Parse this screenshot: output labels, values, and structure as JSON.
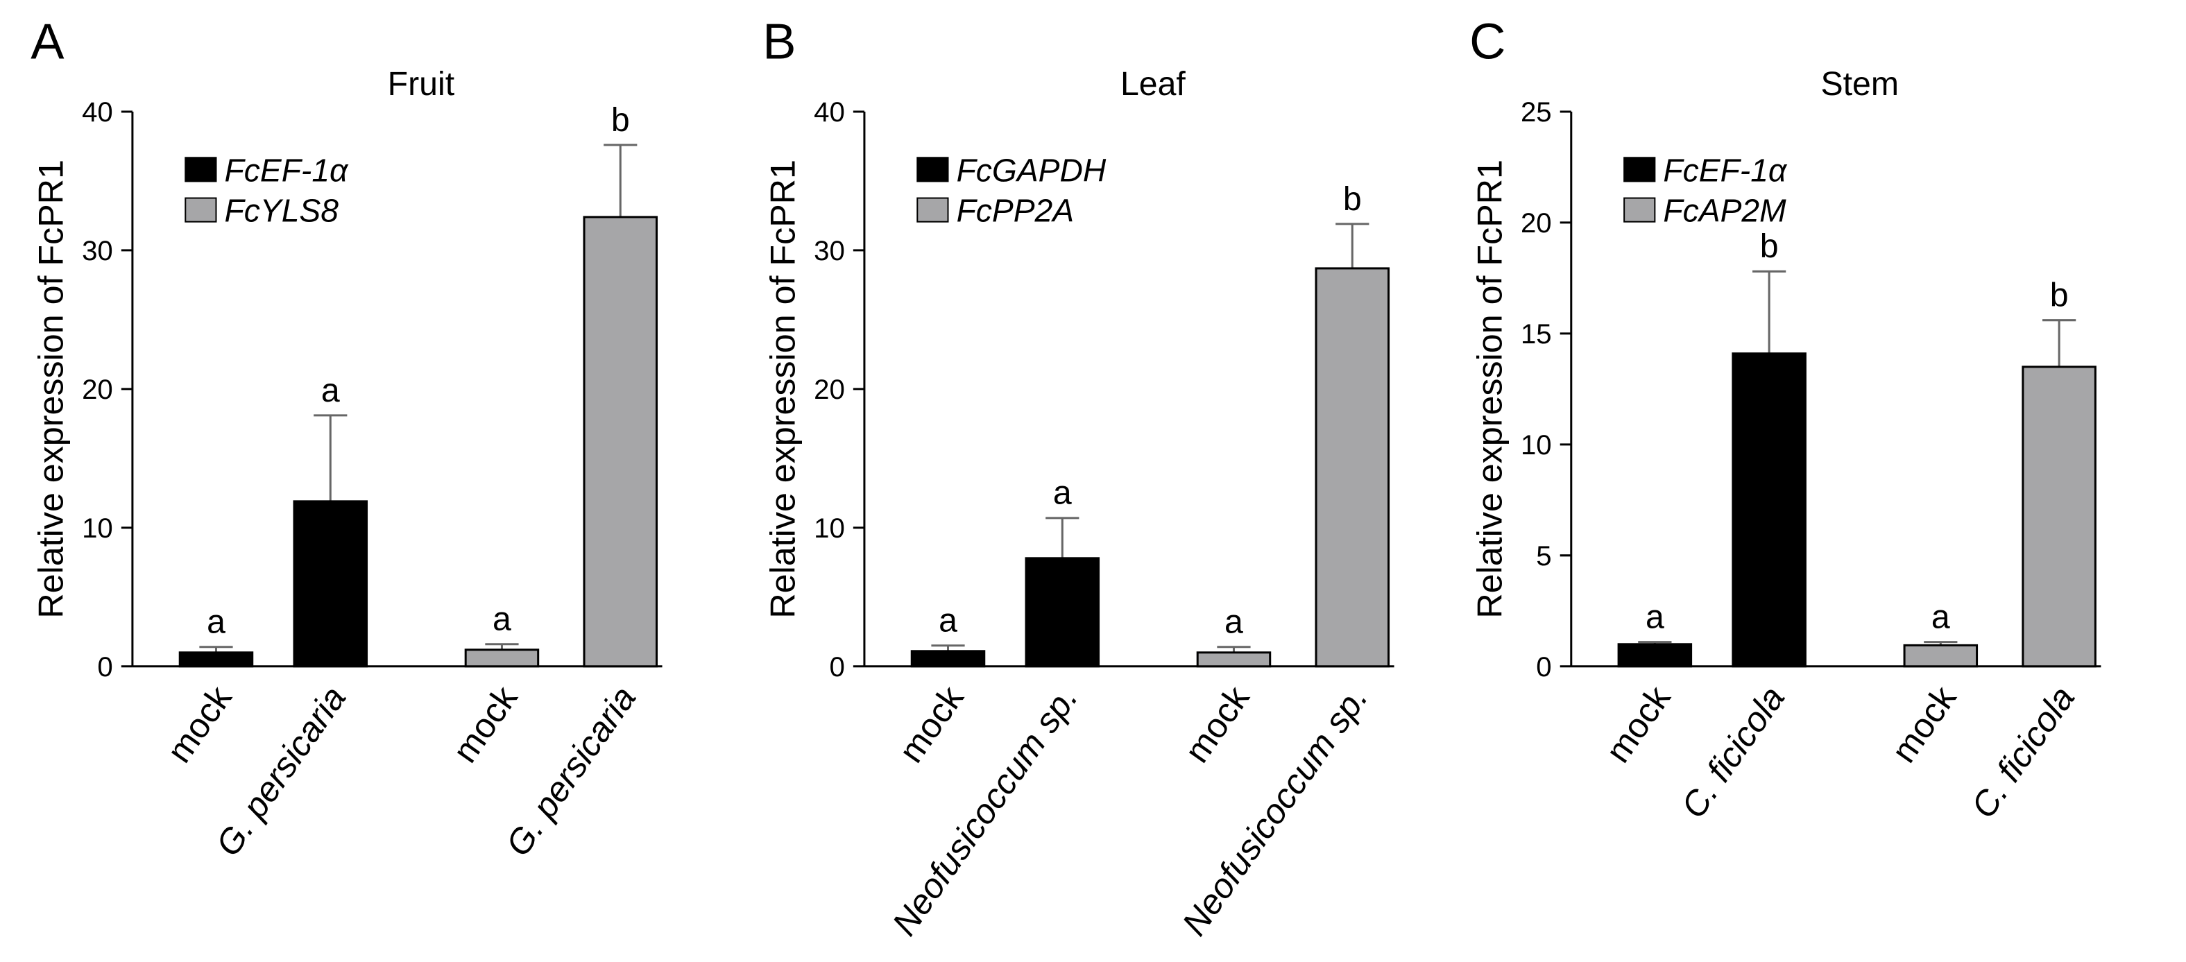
{
  "chart_data": [
    {
      "type": "bar",
      "panel": "A",
      "title": "Fruit",
      "ylabel": "Relative expression of FcPR1",
      "categories": [
        "mock",
        "G. persicaria",
        "mock",
        "G. persicaria"
      ],
      "category_style": [
        "normal",
        "italic",
        "normal",
        "italic"
      ],
      "series": [
        {
          "name": "FcEF-1α",
          "color": "#000000",
          "values": [
            1.0,
            11.9,
            null,
            null
          ],
          "errors": [
            0.4,
            6.2,
            null,
            null
          ],
          "letters": [
            "a",
            "a",
            null,
            null
          ]
        },
        {
          "name": "FcYLS8",
          "color": "#a6a6a8",
          "values": [
            null,
            null,
            1.2,
            32.4
          ],
          "errors": [
            null,
            null,
            0.4,
            5.2
          ],
          "letters": [
            null,
            null,
            "a",
            "b"
          ]
        }
      ],
      "ylim": [
        0,
        40
      ],
      "yticks": [
        0,
        10,
        20,
        30,
        40
      ]
    },
    {
      "type": "bar",
      "panel": "B",
      "title": "Leaf",
      "ylabel": "Relative expression of FcPR1",
      "categories": [
        "mock",
        "Neofusicoccum sp.",
        "mock",
        "Neofusicoccum sp."
      ],
      "category_style": [
        "normal",
        "italic",
        "normal",
        "italic"
      ],
      "series": [
        {
          "name": "FcGAPDH",
          "color": "#000000",
          "values": [
            1.1,
            7.8,
            null,
            null
          ],
          "errors": [
            0.4,
            2.9,
            null,
            null
          ],
          "letters": [
            "a",
            "a",
            null,
            null
          ]
        },
        {
          "name": "FcPP2A",
          "color": "#a6a6a8",
          "values": [
            null,
            null,
            1.0,
            28.7
          ],
          "errors": [
            null,
            null,
            0.4,
            3.2
          ],
          "letters": [
            null,
            null,
            "a",
            "b"
          ]
        }
      ],
      "ylim": [
        0,
        40
      ],
      "yticks": [
        0,
        10,
        20,
        30,
        40
      ]
    },
    {
      "type": "bar",
      "panel": "C",
      "title": "Stem",
      "ylabel": "Relative expression of FcPR1",
      "categories": [
        "mock",
        "C. ficicola",
        "mock",
        "C. ficicola"
      ],
      "category_style": [
        "normal",
        "italic",
        "normal",
        "italic"
      ],
      "series": [
        {
          "name": "FcEF-1α",
          "color": "#000000",
          "values": [
            1.0,
            14.1,
            null,
            null
          ],
          "errors": [
            0.1,
            3.7,
            null,
            null
          ],
          "letters": [
            "a",
            "b",
            null,
            null
          ]
        },
        {
          "name": "FcAP2M",
          "color": "#a6a6a8",
          "values": [
            null,
            null,
            0.95,
            13.5
          ],
          "errors": [
            null,
            null,
            0.15,
            2.1
          ],
          "letters": [
            null,
            null,
            "a",
            "b"
          ]
        }
      ],
      "ylim": [
        0,
        25
      ],
      "yticks": [
        0,
        5,
        10,
        15,
        20,
        25
      ]
    }
  ]
}
